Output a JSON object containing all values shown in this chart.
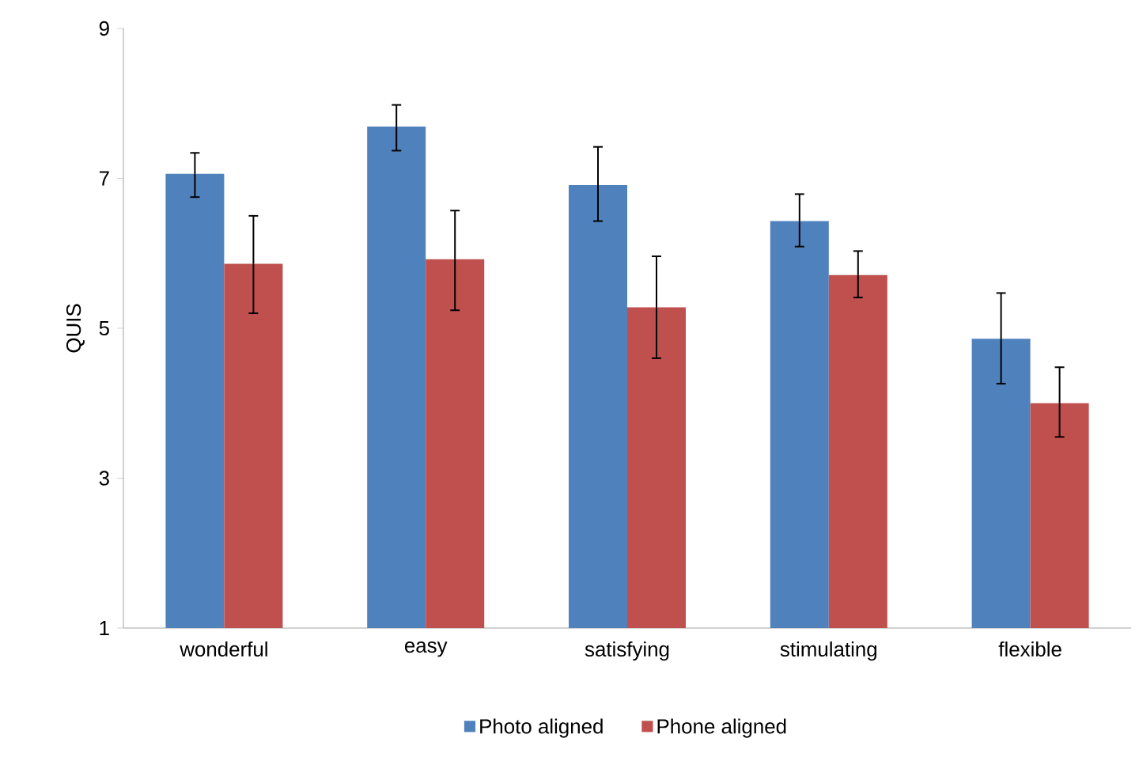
{
  "chart_data": {
    "type": "bar",
    "ylabel": "QUIS",
    "categories": [
      "wonderful",
      "easy",
      "satisfying",
      "stimulating",
      "flexible"
    ],
    "series": [
      {
        "name": "Photo aligned",
        "color": "#4f81bd",
        "values": [
          7.06,
          7.69,
          6.91,
          6.43,
          4.86
        ],
        "errors": [
          [
            6.75,
            7.34
          ],
          [
            7.37,
            7.98
          ],
          [
            6.43,
            7.42
          ],
          [
            6.09,
            6.79
          ],
          [
            4.26,
            5.47
          ]
        ]
      },
      {
        "name": "Phone aligned",
        "color": "#c0504d",
        "values": [
          5.86,
          5.92,
          5.28,
          5.71,
          4.0
        ],
        "errors": [
          [
            5.2,
            6.5
          ],
          [
            5.24,
            6.57
          ],
          [
            4.6,
            5.96
          ],
          [
            5.41,
            6.03
          ],
          [
            3.55,
            4.48
          ]
        ]
      }
    ],
    "ylim": [
      1,
      9
    ],
    "yticks": [
      1,
      3,
      5,
      7,
      9
    ],
    "grid": false,
    "legend": "bottom"
  }
}
